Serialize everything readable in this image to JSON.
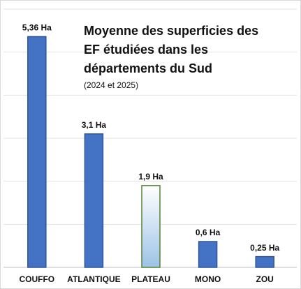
{
  "chart_data": {
    "type": "bar",
    "title": [
      "Moyenne des superficies des",
      "EF étudiées dans les",
      "départements du Sud"
    ],
    "subtitle": "(2024 et 2025)",
    "categories": [
      "COUFFO",
      "ATLANTIQUE",
      "PLATEAU",
      "MONO",
      "ZOU"
    ],
    "values": [
      5.36,
      3.1,
      1.9,
      0.6,
      0.25
    ],
    "value_labels": [
      "5,36 Ha",
      "3,1 Ha",
      "1,9 Ha",
      "0,6 Ha",
      "0,25 Ha"
    ],
    "colors": [
      "#4472c4",
      "#4472c4",
      "#bdd7ee",
      "#4472c4",
      "#4472c4"
    ],
    "edge_colors": [
      "#2f5597",
      "#2f5597",
      "#548235",
      "#2f5597",
      "#2f5597"
    ],
    "ylim": [
      0,
      6
    ],
    "yticks": [
      0,
      1,
      2,
      3,
      4,
      5,
      6
    ],
    "grid": true
  }
}
